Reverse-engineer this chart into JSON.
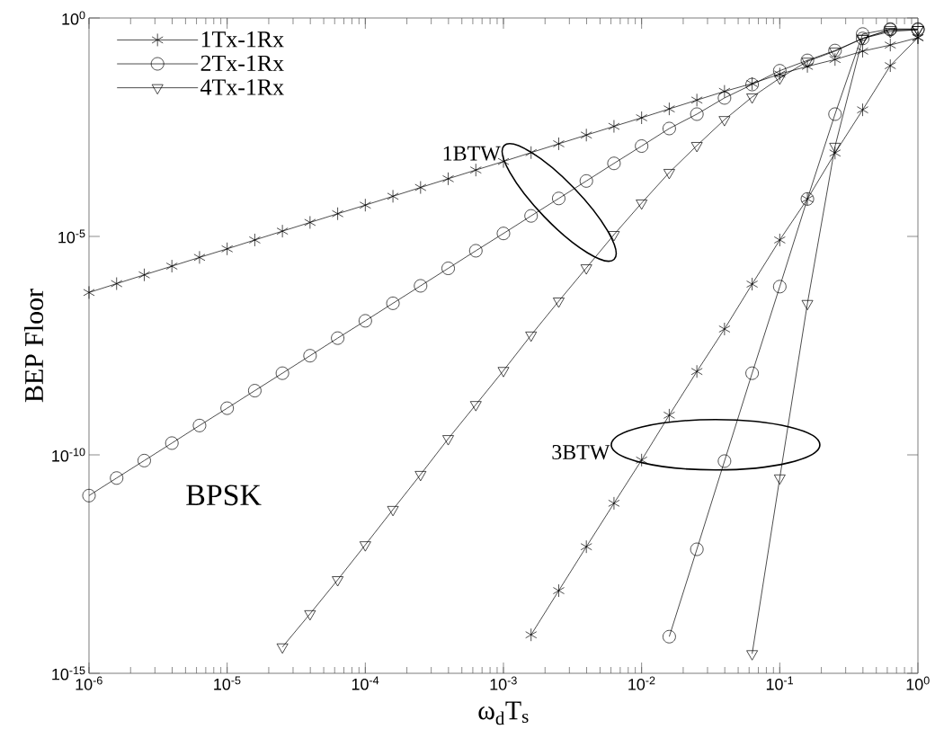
{
  "chart_data": {
    "type": "line",
    "xlabel": "ω$_{d}$T$_{s}$",
    "ylabel": "BEP Floor",
    "log": "xy",
    "legend": "top left",
    "line_style": "solid",
    "annotations": [
      "1BTW",
      "3BTW",
      "BPSK"
    ],
    "xlim": [
      1e-06,
      1
    ],
    "ylim": [
      1e-15,
      1
    ],
    "xticks": [
      {
        "value": 1e-06,
        "label": "10$^{-6}$"
      },
      {
        "value": 1e-05,
        "label": "10$^{-5}$"
      },
      {
        "value": 0.0001,
        "label": "10$^{-4}$"
      },
      {
        "value": 0.001,
        "label": "10$^{-3}$"
      },
      {
        "value": 0.01,
        "label": "10$^{-2}$"
      },
      {
        "value": 0.1,
        "label": "10$^{-1}$"
      },
      {
        "value": 1,
        "label": "10$^{0}$"
      }
    ],
    "yticks": [
      {
        "value": 1e-15,
        "label": "10$^{-15}$"
      },
      {
        "value": 1e-10,
        "label": "10$^{-10}$"
      },
      {
        "value": 1e-05,
        "label": "10$^{-5}$"
      },
      {
        "value": 1,
        "label": "10$^{0}$"
      }
    ],
    "x": [
      1e-06,
      1.585e-06,
      2.512e-06,
      3.981e-06,
      6.31e-06,
      1e-05,
      1.585e-05,
      2.512e-05,
      3.981e-05,
      6.31e-05,
      0.0001,
      0.0001585,
      0.0002512,
      0.0003981,
      0.000631,
      0.001,
      0.001585,
      0.002512,
      0.003981,
      0.00631,
      0.01,
      0.01585,
      0.02512,
      0.03981,
      0.0631,
      0.1,
      0.1585,
      0.2512,
      0.3981,
      0.631,
      1
    ],
    "series": [
      {
        "name": "1Tx-1Rx",
        "color": "#000000",
        "marker": "cross",
        "values": [
          5.2e-07,
          8.3e-07,
          1.32e-06,
          2.09e-06,
          3.31e-06,
          5.2e-06,
          8.3e-06,
          1.32e-05,
          2.09e-05,
          3.31e-05,
          5.2e-05,
          8.3e-05,
          0.000132,
          0.000209,
          0.000331,
          0.00052,
          0.00083,
          0.00132,
          0.00209,
          0.00331,
          0.0052,
          0.0083,
          0.0132,
          0.0209,
          0.0316,
          0.052,
          0.078,
          0.112,
          0.174,
          0.24,
          0.355
        ]
      },
      {
        "name": "2Tx-1Rx",
        "color": "#000000",
        "marker": "circle",
        "values": [
          1.17e-11,
          2.95e-11,
          7.4e-11,
          1.86e-10,
          4.7e-10,
          1.17e-09,
          2.95e-09,
          7.4e-09,
          1.86e-08,
          4.7e-08,
          1.17e-07,
          2.95e-07,
          7.4e-07,
          1.86e-06,
          4.7e-06,
          1.17e-05,
          2.95e-05,
          7.4e-05,
          0.000186,
          0.00047,
          0.00117,
          0.00295,
          0.0063,
          0.0148,
          0.03,
          0.062,
          0.107,
          0.18,
          0.34,
          0.54,
          0.54
        ]
      },
      {
        "name": "4Tx-1Rx",
        "color": "#000000",
        "marker": "triangle",
        "x": [
          2.512e-05,
          3.981e-05,
          6.31e-05,
          0.0001,
          0.0001585,
          0.0002512,
          0.0003981,
          0.000631,
          0.001,
          0.001585,
          0.002512,
          0.003981,
          0.00631,
          0.01,
          0.01585,
          0.02512,
          0.03981,
          0.0631,
          0.1,
          0.1585,
          0.2512,
          0.3981,
          0.631,
          1
        ],
        "values": [
          4e-15,
          2.3e-14,
          1.38e-13,
          8.7e-13,
          5.6e-12,
          3.55e-11,
          2.34e-10,
          1.41e-09,
          8.5e-09,
          5.5e-08,
          3.3e-07,
          1.9e-06,
          1.1e-05,
          5.8e-05,
          0.00029,
          0.0012,
          0.0047,
          0.0155,
          0.042,
          0.102,
          0.174,
          0.34,
          0.49,
          0.54
        ]
      },
      {
        "color": "#000000",
        "marker": "cross",
        "x": [
          0.001585,
          0.002512,
          0.003981,
          0.00631,
          0.01,
          0.01585,
          0.02512,
          0.03981,
          0.0631,
          0.1,
          0.1585,
          0.2512,
          0.3981,
          0.631,
          1
        ],
        "values": [
          7.6e-15,
          7.8e-14,
          7.9e-13,
          7.8e-12,
          7.6e-11,
          8.1e-10,
          8.1e-09,
          7.6e-08,
          8.1e-07,
          8.3e-06,
          7.2e-05,
          0.00081,
          0.0079,
          0.081,
          0.355
        ]
      },
      {
        "color": "#000000",
        "marker": "circle",
        "x": [
          0.01585,
          0.02512,
          0.03981,
          0.0631,
          0.1,
          0.1585,
          0.2512,
          0.3981,
          0.631,
          1
        ],
        "values": [
          6.9e-15,
          6.9e-13,
          7.2e-11,
          7.4e-09,
          7.1e-07,
          7.2e-05,
          0.0063,
          0.43,
          0.56,
          0.56
        ]
      },
      {
        "color": "#000000",
        "marker": "triangle",
        "x": [
          0.0631,
          0.1,
          0.1585,
          0.2512,
          0.3981,
          0.631,
          1
        ],
        "values": [
          2.8e-15,
          2.95e-11,
          2.9e-07,
          0.00115,
          0.34,
          0.54,
          0.54
        ]
      }
    ]
  }
}
